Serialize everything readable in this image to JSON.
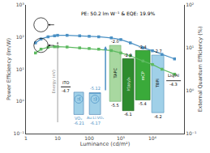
{
  "chart_data": {
    "type": "line",
    "title": "PE: 50.2 lm W⁻¹ & EQE: 19.9%",
    "x_label": "Luminance (cd/m²)",
    "y_label": "Power Efficiency (lm/W)",
    "y2_label": "External Quantum Efficiency (%)",
    "x": [
      2,
      3,
      5,
      8,
      10,
      20,
      50,
      100,
      200,
      500,
      1000,
      2000,
      5000,
      10000,
      20000,
      50000
    ],
    "series": [
      {
        "color": "#5dba60",
        "marker": "square",
        "values": [
          32,
          42,
          48,
          50,
          50,
          49,
          46,
          44,
          42,
          38,
          32,
          26,
          18,
          14,
          10,
          7
        ]
      },
      {
        "color": "#4a90c4",
        "marker": "square",
        "axis": "y2",
        "values": [
          13,
          16,
          18,
          19,
          19.5,
          19.5,
          19,
          18.5,
          18,
          17,
          15.5,
          13,
          10,
          8.5,
          7,
          5.5
        ]
      }
    ],
    "log": true,
    "grid": false,
    "xlim": [
      1,
      100000
    ],
    "xticks": [
      1,
      10,
      100,
      {
        "value": 1000,
        "label": "10³"
      },
      {
        "value": 10000,
        "label": "10⁴"
      }
    ],
    "ylim": [
      0.1,
      1000
    ],
    "yticks": [
      {
        "value": 0.1,
        "label": "10⁻¹"
      },
      {
        "value": 1,
        "label": "10⁰"
      },
      {
        "value": 10,
        "label": "10¹"
      },
      {
        "value": 100,
        "label": "10²"
      },
      {
        "value": 1000,
        "label": "10³"
      }
    ],
    "y2lim": [
      0.1,
      100
    ],
    "y2ticks": [
      {
        "value": 0.1,
        "label": "10⁻¹"
      },
      {
        "value": 1,
        "label": "10⁰"
      },
      {
        "value": 10,
        "label": "10¹"
      },
      {
        "value": 100,
        "label": "10²"
      }
    ],
    "annotations": [
      "Energy (eV)",
      "ITO",
      "-4.7",
      ":(",
      "VOₓ",
      "-6.21",
      ":)",
      "Au:Li:VOₓ",
      "-6.17",
      "-5.12",
      "TAPC",
      "-2.0",
      "-5.5",
      "Ir(ppy)₃",
      "-2.9",
      "-6.1",
      "mCP",
      "-2.4",
      "-5.4",
      "TBPi",
      "-2.7",
      "-6.2",
      "Liq/Al",
      "-4.3"
    ]
  }
}
